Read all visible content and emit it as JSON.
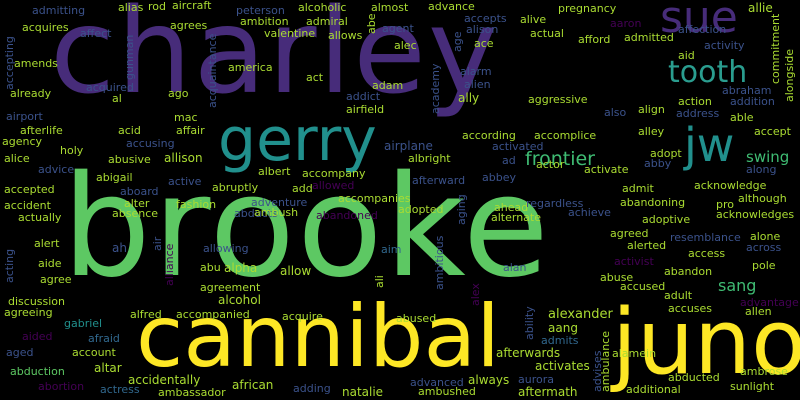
{
  "palette": {
    "purple": "#472c7a",
    "indigo": "#3b528b",
    "teal": "#21908d",
    "green": "#5dc863",
    "yellow": "#fde725",
    "blue": "#31688e",
    "lime": "#aadc32",
    "dark": "#440154"
  },
  "words": {
    "charley": "charley",
    "brooke": "brooke",
    "cannibal": "cannibal",
    "juno": "juno",
    "gerry": "gerry",
    "sue": "sue",
    "tooth": "tooth",
    "jw": "jw",
    "frontier": "frontier",
    "swing": "swing",
    "sang": "sang",
    "alexander": "alexander",
    "aang": "aang",
    "afterwards": "afterwards",
    "always": "always",
    "aftermath": "aftermath",
    "advanced": "advanced",
    "ambushed": "ambushed",
    "natalie": "natalie",
    "adding": "adding",
    "african": "african",
    "actress": "actress",
    "ambassador": "ambassador",
    "accidentally": "accidentally",
    "altar": "altar",
    "account": "account",
    "abduction": "abduction",
    "abortion": "abortion",
    "aged": "aged",
    "afraid": "afraid",
    "gabriel": "gabriel",
    "aided": "aided",
    "agreeing": "agreeing",
    "discussion": "discussion",
    "alfred": "alfred",
    "accompanied": "accompanied",
    "acquire": "acquire",
    "abused": "abused",
    "alcohol": "alcohol",
    "agreement": "agreement",
    "abu": "abu",
    "alpha": "alpha",
    "allow": "allow",
    "allowing": "allowing",
    "aim": "aim",
    "ali": "ali",
    "ambitious": "ambitious",
    "agree": "agree",
    "aide": "aide",
    "alert": "alert",
    "acting": "acting",
    "ah": "ah",
    "air": "air",
    "alliance": "alliance",
    "accident": "accident",
    "actually": "actually",
    "accepted": "accepted",
    "absence": "absence",
    "alter": "alter",
    "aboard": "aboard",
    "abigail": "abigail",
    "advice": "advice",
    "alice": "alice",
    "agency": "agency",
    "afterlife": "afterlife",
    "airport": "airport",
    "holy": "holy",
    "acid": "acid",
    "abusive": "abusive",
    "accusing": "accusing",
    "allison": "allison",
    "affair": "affair",
    "mac": "mac",
    "active": "active",
    "abruptly": "abruptly",
    "albert": "albert",
    "add": "add",
    "accompany": "accompany",
    "allowed": "allowed",
    "fashion": "fashion",
    "abducts": "abducts",
    "ambush": "ambush",
    "adventure": "adventure",
    "accompanies": "accompanies",
    "abandoned": "abandoned",
    "adopted": "adopted",
    "airplane": "airplane",
    "albright": "albright",
    "afterward": "afterward",
    "ad": "ad",
    "abbey": "abbey",
    "according": "according",
    "accomplice": "accomplice",
    "activated": "activated",
    "actor": "actor",
    "activate": "activate",
    "ahead": "ahead",
    "regardless": "regardless",
    "achieve": "achieve",
    "alternate": "alternate",
    "aging": "aging",
    "alan": "alan",
    "alex": "alex",
    "ability": "ability",
    "admits": "admits",
    "advises": "advises",
    "ambulance": "ambulance",
    "activates": "activates",
    "aurora": "aurora",
    "abducted": "abducted",
    "additional": "additional",
    "alamein": "alamein",
    "ambrose": "ambrose",
    "sunlight": "sunlight",
    "accuses": "accuses",
    "allen": "allen",
    "advantage": "advantage",
    "adult": "adult",
    "accused": "accused",
    "abuse": "abuse",
    "abandon": "abandon",
    "activist": "activist",
    "pole": "pole",
    "access": "access",
    "alerted": "alerted",
    "agreed": "agreed",
    "resemblance": "resemblance",
    "alone": "alone",
    "across": "across",
    "adoptive": "adoptive",
    "abandoning": "abandoning",
    "pro": "pro",
    "although": "although",
    "acknowledges": "acknowledges",
    "admit": "admit",
    "acknowledge": "acknowledge",
    "along": "along",
    "adopt": "adopt",
    "abby": "abby",
    "accept": "accept",
    "alley": "alley",
    "able": "able",
    "action": "action",
    "address": "address",
    "align": "align",
    "also": "also",
    "aggressive": "aggressive",
    "abraham": "abraham",
    "addition": "addition",
    "alongside": "alongside",
    "commitment": "commitment",
    "activity": "activity",
    "aid": "aid",
    "affection": "affection",
    "aaron": "aaron",
    "allie": "allie",
    "admitted": "admitted",
    "afford": "afford",
    "pregnancy": "pregnancy",
    "alive": "alive",
    "accepts": "accepts",
    "actual": "actual",
    "alison": "alison",
    "ace": "ace",
    "advance": "advance",
    "age": "age",
    "almost": "almost",
    "alcoholic": "alcoholic",
    "agent": "agent",
    "abe": "abe",
    "admiral": "admiral",
    "alec": "alec",
    "allows": "allows",
    "ambition": "ambition",
    "peterson": "peterson",
    "valentine": "valentine",
    "rod": "rod",
    "aircraft": "aircraft",
    "alias": "alias",
    "admitting": "admitting",
    "agrees": "agrees",
    "affect": "affect",
    "acquires": "acquires",
    "accepting": "accepting",
    "amends": "amends",
    "gunman": "gunman",
    "acquaintance": "acquaintance",
    "america": "america",
    "already": "already",
    "acquired": "acquired",
    "al": "al",
    "ago": "ago",
    "act": "act",
    "adam": "adam",
    "academy": "academy",
    "addict": "addict",
    "alarm": "alarm",
    "alien": "alien",
    "ally": "ally",
    "airfield": "airfield"
  }
}
